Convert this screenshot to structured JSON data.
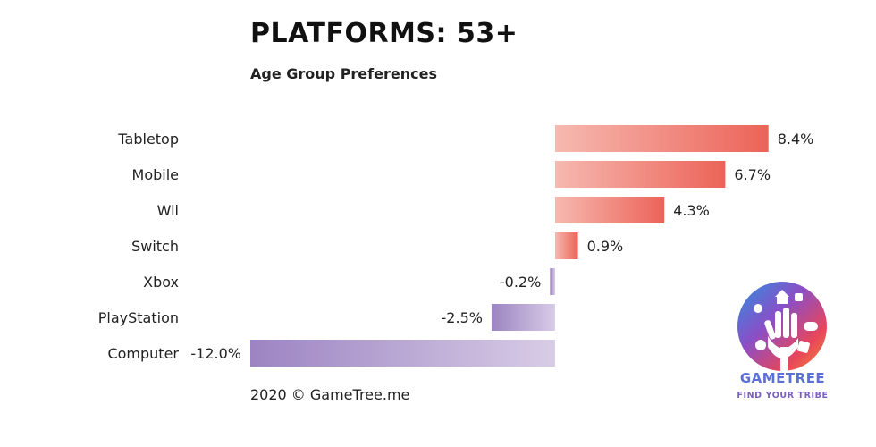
{
  "title": "PLATFORMS: 53+",
  "subtitle": "Age Group Preferences",
  "footer": "2020 © GameTree.me",
  "logo": {
    "brand": "GAMETREE",
    "tagline": "FIND YOUR TRIBE"
  },
  "colors": {
    "positive_light": "#f6b9b0",
    "positive_dark": "#ec6358",
    "negative_light": "#d8cce6",
    "negative_dark": "#9c84c2"
  },
  "chart_data": {
    "type": "bar",
    "orientation": "horizontal",
    "categories": [
      "Tabletop",
      "Mobile",
      "Wii",
      "Switch",
      "Xbox",
      "PlayStation",
      "Computer"
    ],
    "values": [
      8.4,
      6.7,
      4.3,
      0.9,
      -0.2,
      -2.5,
      -12.0
    ],
    "value_labels": [
      "8.4%",
      "6.7%",
      "4.3%",
      "0.9%",
      "-0.2%",
      "-2.5%",
      "-12.0%"
    ],
    "xlim": [
      -12.0,
      8.4
    ],
    "grid": false
  }
}
